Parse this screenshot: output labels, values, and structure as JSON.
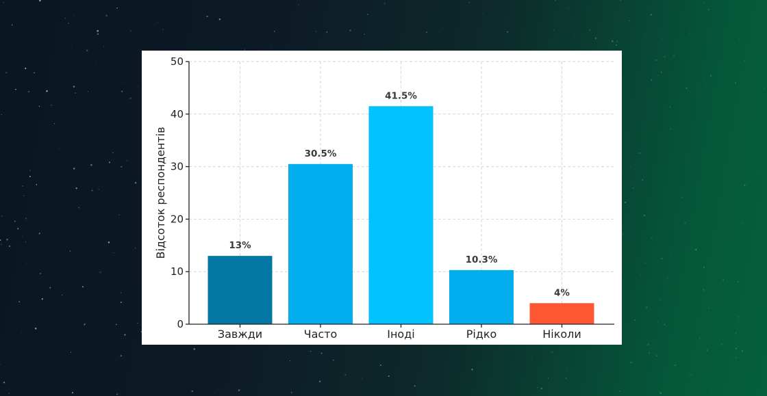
{
  "chart_data": {
    "type": "bar",
    "title": "",
    "xlabel": "",
    "ylabel": "Відсоток респондентів",
    "categories": [
      "Завжди",
      "Часто",
      "Іноді",
      "Рідко",
      "Ніколи"
    ],
    "values": [
      13,
      30.5,
      41.5,
      10.3,
      4
    ],
    "data_labels": [
      "13%",
      "30.5%",
      "41.5%",
      "10.3%",
      "4%"
    ],
    "colors": [
      "#0277a3",
      "#03aeee",
      "#00c2ff",
      "#03aeee",
      "#ff5733"
    ],
    "ylim": [
      0,
      50
    ],
    "yticks": [
      0,
      10,
      20,
      30,
      40,
      50
    ],
    "grid": true,
    "legend": "none"
  },
  "background": {
    "colors": [
      "#0a1620",
      "#04603d"
    ]
  }
}
